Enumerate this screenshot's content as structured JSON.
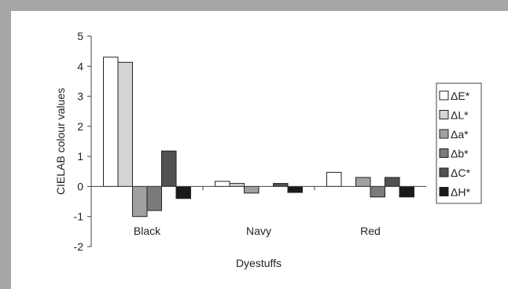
{
  "chart_data": {
    "type": "bar",
    "title": "",
    "xlabel": "Dyestuffs",
    "ylabel": "CIELAB colour values",
    "categories": [
      "Black",
      "Navy",
      "Red"
    ],
    "ylim": [
      -2,
      5
    ],
    "yticks": [
      "5",
      "4",
      "3",
      "2",
      "1",
      "0",
      "-1",
      "-2"
    ],
    "ytick_values": [
      5,
      4,
      3,
      2,
      1,
      0,
      -1,
      -2
    ],
    "grid": false,
    "legend_position": "right",
    "series": [
      {
        "name": "ΔE*",
        "color": "#ffffff",
        "values": [
          4.3,
          0.17,
          0.47
        ]
      },
      {
        "name": "ΔL*",
        "color": "#d4d4d4",
        "values": [
          4.13,
          0.1,
          0.0
        ]
      },
      {
        "name": "Δa*",
        "color": "#a0a0a0",
        "values": [
          -1.0,
          -0.22,
          0.3
        ]
      },
      {
        "name": "Δb*",
        "color": "#7a7a7a",
        "values": [
          -0.8,
          0.0,
          -0.35
        ]
      },
      {
        "name": "ΔC*",
        "color": "#525252",
        "values": [
          1.18,
          0.1,
          0.3
        ]
      },
      {
        "name": "ΔH*",
        "color": "#1a1a1a",
        "values": [
          -0.4,
          -0.2,
          -0.35
        ]
      }
    ]
  }
}
